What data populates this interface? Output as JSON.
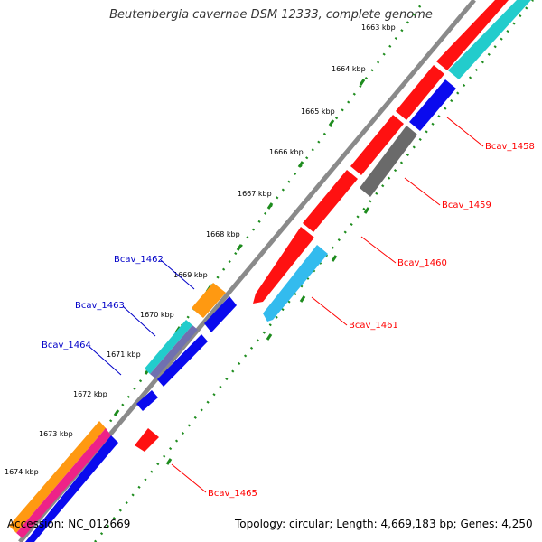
{
  "title": "Beutenbergia cavernae DSM 12333, complete genome",
  "footer": {
    "accession": "Accession: NC_012669",
    "stats": "Topology: circular; Length: 4,669,183 bp; Genes: 4,250"
  },
  "colors": {
    "backbone": "#8a8a8a",
    "ticks": "#1e8c1e",
    "label_red": "#ff0000",
    "label_blue": "#0000c8",
    "red": "#ff1111",
    "cyan": "#22cccc",
    "skyblue": "#33bbee",
    "blue": "#0a0aee",
    "gray": "#6a6a6a",
    "orange": "#ff9911",
    "magenta": "#ee2288",
    "purple": "#7070b0"
  },
  "kbp_labels": [
    "1663 kbp",
    "1664 kbp",
    "1665 kbp",
    "1666 kbp",
    "1667 kbp",
    "1668 kbp",
    "1669 kbp",
    "1670 kbp",
    "1671 kbp",
    "1672 kbp",
    "1673 kbp",
    "1674 kbp"
  ],
  "gene_labels": [
    {
      "text": "Bcav_1458",
      "side": "right"
    },
    {
      "text": "Bcav_1459",
      "side": "right"
    },
    {
      "text": "Bcav_1460",
      "side": "right"
    },
    {
      "text": "Bcav_1461",
      "side": "right"
    },
    {
      "text": "Bcav_1462",
      "side": "left"
    },
    {
      "text": "Bcav_1463",
      "side": "left"
    },
    {
      "text": "Bcav_1464",
      "side": "left"
    },
    {
      "text": "Bcav_1465",
      "side": "right"
    }
  ]
}
